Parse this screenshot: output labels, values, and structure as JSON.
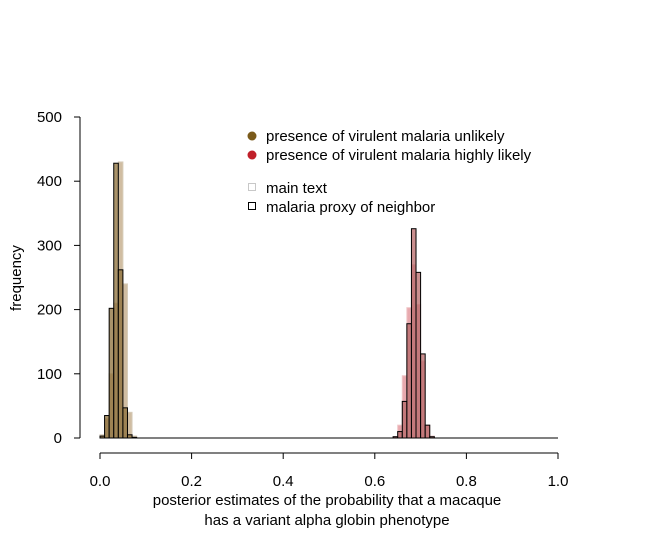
{
  "chart_data": {
    "type": "bar",
    "title": "",
    "xlabel_lines": [
      "posterior estimates of the probability that a macaque",
      "has a variant alpha globin phenotype"
    ],
    "ylabel": "frequency",
    "xlim": [
      0,
      1
    ],
    "ylim": [
      0,
      500
    ],
    "x_ticks": [
      "0.0",
      "0.2",
      "0.4",
      "0.6",
      "0.8",
      "1.0"
    ],
    "y_ticks": [
      "0",
      "100",
      "200",
      "300",
      "400",
      "500"
    ],
    "bin_width": 0.01,
    "legend_colors": [
      {
        "label": "presence of virulent malaria unlikely",
        "color": "#7a5a1a"
      },
      {
        "label": "presence of virulent malaria highly likely",
        "color": "#c0202a"
      }
    ],
    "legend_styles": [
      {
        "label": "main text",
        "style": "light-outline"
      },
      {
        "label": "malaria proxy of neighbor",
        "style": "black-outline"
      }
    ],
    "series": [
      {
        "group": "unlikely",
        "style": "main text",
        "fill": "#c8b292",
        "edge": "#d6cbb8",
        "bins": [
          [
            0.0,
            5
          ],
          [
            0.01,
            30
          ],
          [
            0.02,
            100
          ],
          [
            0.03,
            210
          ],
          [
            0.04,
            430
          ],
          [
            0.05,
            240
          ],
          [
            0.06,
            40
          ],
          [
            0.07,
            3
          ]
        ]
      },
      {
        "group": "unlikely",
        "style": "malaria proxy of neighbor",
        "fill": "#8c6f38",
        "edge": "#000000",
        "bins": [
          [
            0.0,
            3
          ],
          [
            0.01,
            35
          ],
          [
            0.02,
            202
          ],
          [
            0.03,
            428
          ],
          [
            0.04,
            262
          ],
          [
            0.05,
            47
          ],
          [
            0.06,
            5
          ],
          [
            0.07,
            1
          ]
        ]
      },
      {
        "group": "likely",
        "style": "main text",
        "fill": "#e49aa0",
        "edge": "#efc6c8",
        "bins": [
          [
            0.64,
            2
          ],
          [
            0.65,
            20
          ],
          [
            0.66,
            97
          ],
          [
            0.67,
            203
          ],
          [
            0.68,
            270
          ],
          [
            0.69,
            208
          ],
          [
            0.7,
            120
          ],
          [
            0.71,
            20
          ],
          [
            0.72,
            3
          ]
        ]
      },
      {
        "group": "likely",
        "style": "malaria proxy of neighbor",
        "fill": "#b86a6a",
        "edge": "#000000",
        "bins": [
          [
            0.64,
            2
          ],
          [
            0.65,
            10
          ],
          [
            0.66,
            57
          ],
          [
            0.67,
            178
          ],
          [
            0.68,
            326
          ],
          [
            0.69,
            258
          ],
          [
            0.7,
            131
          ],
          [
            0.71,
            20
          ],
          [
            0.72,
            2
          ]
        ]
      }
    ]
  }
}
